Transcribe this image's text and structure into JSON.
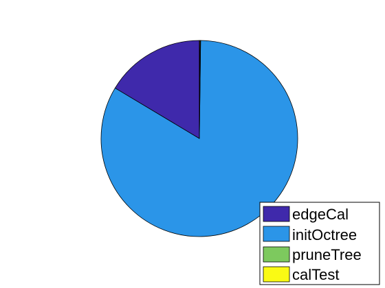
{
  "chart_data": {
    "type": "pie",
    "categories": [
      "edgeCal",
      "initOctree",
      "pruneTree",
      "calTest"
    ],
    "values": [
      16.4,
      83.4,
      0.1,
      0.1
    ],
    "colors": [
      "#3F29AB",
      "#2B95E8",
      "#7DC95E",
      "#FAFA14"
    ],
    "start_angle_deg": 90,
    "direction": "counterclockwise",
    "legend": {
      "position": "bottom-right",
      "entries": [
        "edgeCal",
        "initOctree",
        "pruneTree",
        "calTest"
      ]
    },
    "title": "",
    "edge_color": "#000000"
  }
}
